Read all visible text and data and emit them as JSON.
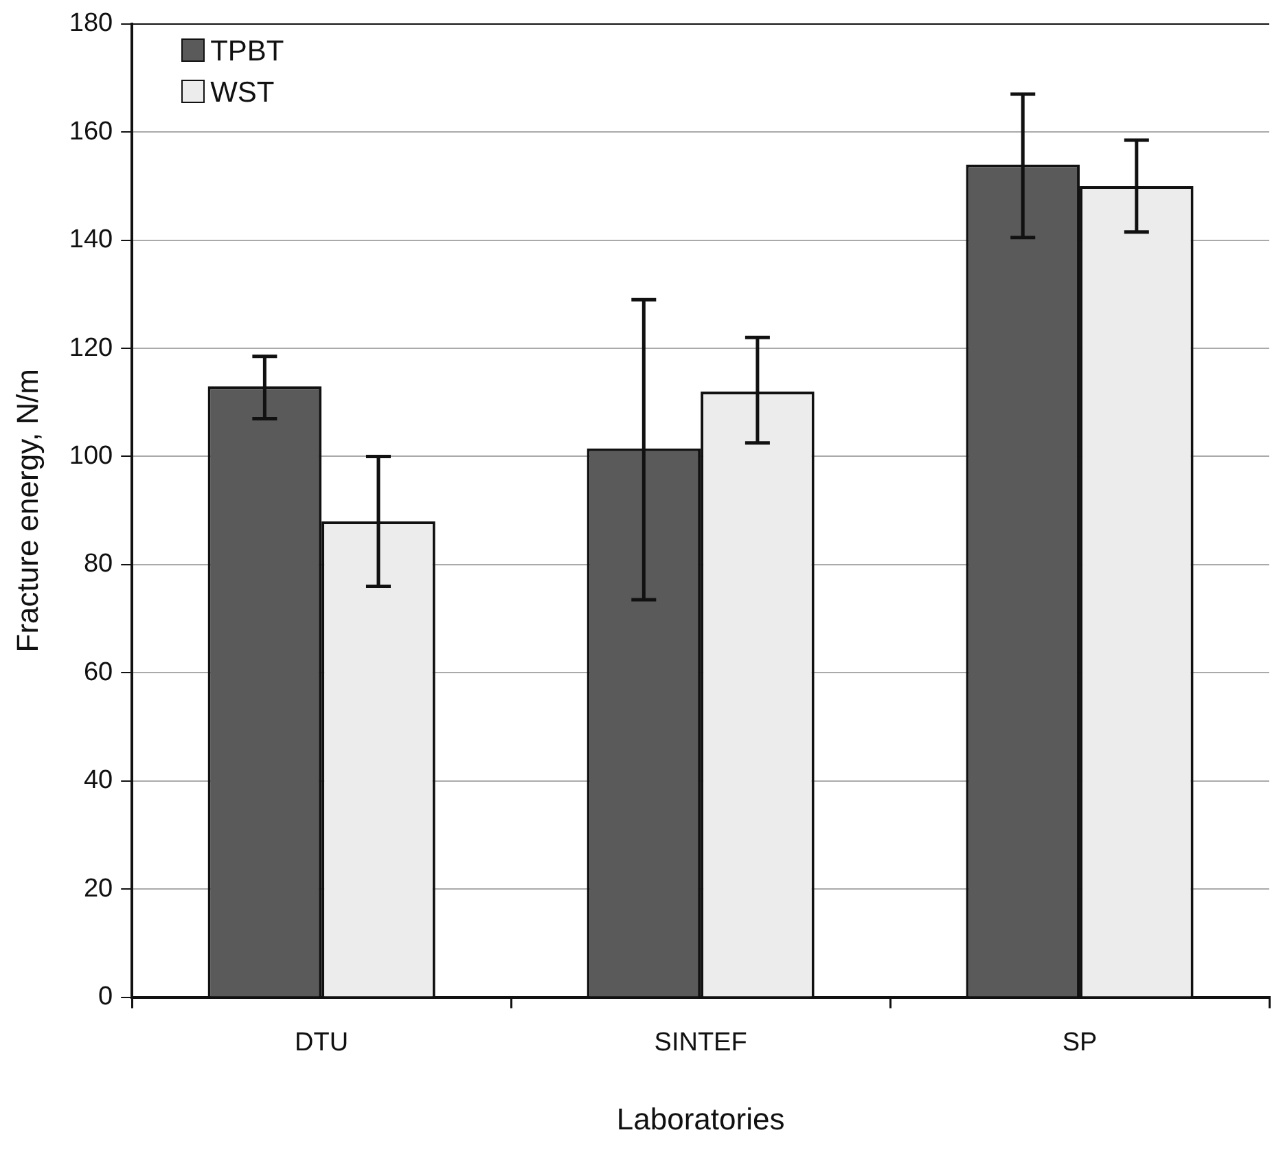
{
  "chart_data": {
    "type": "bar",
    "xlabel": "Laboratories",
    "ylabel": "Fracture energy, N/m",
    "categories": [
      "DTU",
      "SINTEF",
      "SP"
    ],
    "series": [
      {
        "name": "TPBT",
        "color": "#5a5a5a",
        "values": [
          113,
          101.5,
          154
        ],
        "errors": [
          [
            107,
            118.5
          ],
          [
            73.5,
            129
          ],
          [
            140.5,
            167
          ]
        ]
      },
      {
        "name": "WST",
        "color": "#ececec",
        "values": [
          88,
          112,
          150
        ],
        "errors": [
          [
            76,
            100
          ],
          [
            102.5,
            122
          ],
          [
            141.5,
            158.5
          ]
        ]
      }
    ],
    "ylim": [
      0,
      180
    ],
    "yticks": [
      0,
      20,
      40,
      60,
      80,
      100,
      120,
      140,
      160,
      180
    ],
    "grid": "y",
    "legend": "top left"
  }
}
